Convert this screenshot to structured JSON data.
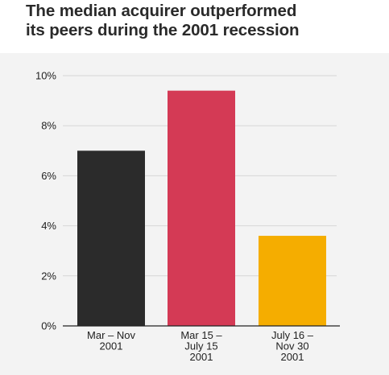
{
  "title_lines": [
    "The median acquirer outperformed",
    "its peers during the 2001 recession"
  ],
  "chart_data": {
    "type": "bar",
    "title": "The median acquirer outperformed its peers during the 2001 recession",
    "categories": [
      [
        "Mar – Nov",
        "2001"
      ],
      [
        "Mar 15 –",
        "July 15",
        "2001"
      ],
      [
        "July 16 –",
        "Nov 30",
        "2001"
      ]
    ],
    "values": [
      7.0,
      9.4,
      3.6
    ],
    "colors": [
      "#2b2b2b",
      "#d43a55",
      "#f5ad00"
    ],
    "ylim": [
      0,
      10
    ],
    "yticks": [
      0,
      2,
      4,
      6,
      8,
      10
    ],
    "ytick_labels": [
      "0%",
      "2%",
      "4%",
      "6%",
      "8%",
      "10%"
    ],
    "grid": true,
    "xlabel": "",
    "ylabel": ""
  }
}
